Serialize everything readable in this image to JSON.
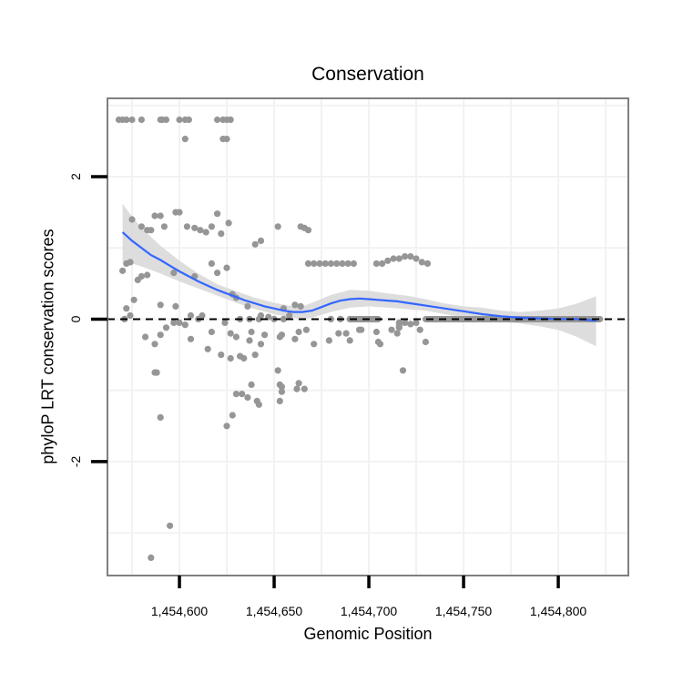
{
  "chart_data": {
    "type": "scatter",
    "title": "Conservation",
    "xlabel": "Genomic Position",
    "ylabel": "phyloP LRT conservation scores",
    "xlim": [
      1454562,
      1454837
    ],
    "ylim": [
      -3.6,
      3.1
    ],
    "x_ticks": [
      1454600,
      1454650,
      1454700,
      1454750,
      1454800
    ],
    "x_tick_labels": [
      "1,454,600",
      "1,454,650",
      "1,454,700",
      "1,454,750",
      "1,454,800"
    ],
    "y_ticks": [
      2,
      0,
      -2
    ],
    "y_tick_labels": [
      "2",
      "0",
      "-2"
    ],
    "reference_line": 0,
    "colors": {
      "points": "#969696",
      "smooth": "#3366ff",
      "band": "#d9d9d9",
      "grid": "#f2f2f2",
      "panel_border": "#7f7f7f"
    },
    "series": [
      {
        "name": "scores",
        "kind": "points",
        "x": [
          1454568,
          1454570,
          1454572,
          1454575,
          1454580,
          1454590,
          1454591,
          1454593,
          1454600,
          1454603,
          1454605,
          1454620,
          1454623,
          1454625,
          1454627,
          1454603,
          1454623,
          1454625,
          1454575,
          1454580,
          1454583,
          1454585,
          1454587,
          1454590,
          1454592,
          1454598,
          1454600,
          1454604,
          1454608,
          1454611,
          1454614,
          1454617,
          1454620,
          1454622,
          1454626,
          1454640,
          1454643,
          1454652,
          1454664,
          1454666,
          1454668,
          1454570,
          1454572,
          1454574,
          1454576,
          1454578,
          1454580,
          1454583,
          1454597,
          1454608,
          1454617,
          1454620,
          1454625,
          1454628,
          1454630,
          1454668,
          1454671,
          1454674,
          1454677,
          1454680,
          1454683,
          1454686,
          1454689,
          1454692,
          1454704,
          1454707,
          1454710,
          1454713,
          1454716,
          1454719,
          1454722,
          1454725,
          1454728,
          1454731,
          1454572,
          1454574,
          1454590,
          1454598,
          1454606,
          1454612,
          1454636,
          1454643,
          1454647,
          1454655,
          1454658,
          1454661,
          1454664,
          1454571,
          1454600,
          1454603,
          1454610,
          1454624,
          1454632,
          1454637,
          1454642,
          1454650,
          1454655,
          1454680,
          1454685,
          1454690,
          1454716,
          1454719,
          1454722,
          1454725,
          1454582,
          1454587,
          1454593,
          1454597,
          1454606,
          1454615,
          1454627,
          1454630,
          1454634,
          1454637,
          1454640,
          1454643,
          1454653,
          1454661,
          1454671,
          1454679,
          1454684,
          1454690,
          1454705,
          1454715,
          1454730,
          1454587,
          1454590,
          1454617,
          1454632,
          1454638,
          1454645,
          1454654,
          1454663,
          1454667,
          1454696,
          1454706,
          1454716,
          1454727,
          1454588,
          1454622,
          1454625,
          1454628,
          1454638,
          1454641,
          1454652,
          1454653,
          1454654,
          1454654,
          1454662,
          1454666,
          1454688,
          1454695,
          1454704,
          1454712,
          1454718,
          1454590,
          1454627,
          1454630,
          1454633,
          1454636,
          1454642,
          1454653,
          1454663,
          1454716,
          1454595,
          1454585
        ],
        "y": [
          2.8,
          2.8,
          2.8,
          2.8,
          2.8,
          2.8,
          2.8,
          2.8,
          2.8,
          2.8,
          2.8,
          2.8,
          2.8,
          2.8,
          2.8,
          2.53,
          2.53,
          2.53,
          1.4,
          1.3,
          1.25,
          1.25,
          1.45,
          1.45,
          1.3,
          1.5,
          1.5,
          1.3,
          1.28,
          1.25,
          1.22,
          1.3,
          1.48,
          1.2,
          1.35,
          1.05,
          1.1,
          1.3,
          1.3,
          1.28,
          1.25,
          0.68,
          0.78,
          0.8,
          0.27,
          0.55,
          0.6,
          0.62,
          0.65,
          0.6,
          0.78,
          0.65,
          0.72,
          0.35,
          0.3,
          0.78,
          0.78,
          0.78,
          0.78,
          0.78,
          0.78,
          0.78,
          0.78,
          0.78,
          0.78,
          0.78,
          0.82,
          0.85,
          0.85,
          0.88,
          0.88,
          0.85,
          0.8,
          0.78,
          0.15,
          0.05,
          0.2,
          0.18,
          0.05,
          0.05,
          0.18,
          0.05,
          0.03,
          0.15,
          0.05,
          0.2,
          0.18,
          0.0,
          -0.05,
          -0.08,
          0.0,
          -0.05,
          0.0,
          0.0,
          0.0,
          0.0,
          0.0,
          0.0,
          0.0,
          0.0,
          -0.05,
          -0.05,
          -0.07,
          -0.05,
          -0.25,
          -0.35,
          -0.12,
          -0.05,
          -0.28,
          -0.42,
          -0.2,
          -0.25,
          -0.55,
          -0.3,
          -0.5,
          -0.35,
          -0.25,
          -0.28,
          -0.35,
          -0.3,
          -0.2,
          -0.3,
          -0.32,
          -0.2,
          -0.32,
          -0.75,
          -0.22,
          -0.18,
          -0.52,
          -0.18,
          -0.22,
          -0.22,
          -0.18,
          -0.15,
          -0.15,
          -0.35,
          -0.12,
          -0.15,
          -0.75,
          -0.5,
          -1.5,
          -1.35,
          -0.92,
          -1.15,
          -0.72,
          -0.92,
          -1.02,
          -0.95,
          -0.98,
          -0.98,
          -0.2,
          -0.15,
          -0.18,
          -0.15,
          -0.72,
          -1.38,
          -0.55,
          -1.05,
          -1.05,
          -1.1,
          -1.2,
          -1.15,
          -0.9,
          -0.1,
          -2.9,
          -3.35
        ]
      },
      {
        "name": "segment_near_zero",
        "kind": "thick-segments",
        "segments": [
          [
            1454690,
            1454705,
            0.0
          ],
          [
            1454730,
            1454822,
            0.0
          ]
        ]
      },
      {
        "name": "loess smooth",
        "kind": "line",
        "x": [
          1454570,
          1454575,
          1454580,
          1454585,
          1454590,
          1454595,
          1454600,
          1454605,
          1454610,
          1454615,
          1454620,
          1454625,
          1454630,
          1454635,
          1454640,
          1454645,
          1454650,
          1454655,
          1454660,
          1454665,
          1454670,
          1454675,
          1454680,
          1454685,
          1454690,
          1454695,
          1454700,
          1454705,
          1454710,
          1454715,
          1454720,
          1454725,
          1454730,
          1454740,
          1454750,
          1454760,
          1454770,
          1454780,
          1454790,
          1454800,
          1454810,
          1454820
        ],
        "y": [
          1.22,
          1.1,
          1.0,
          0.9,
          0.83,
          0.75,
          0.67,
          0.6,
          0.53,
          0.47,
          0.41,
          0.36,
          0.31,
          0.26,
          0.22,
          0.18,
          0.15,
          0.12,
          0.1,
          0.1,
          0.12,
          0.17,
          0.22,
          0.26,
          0.28,
          0.29,
          0.28,
          0.27,
          0.26,
          0.25,
          0.23,
          0.21,
          0.19,
          0.15,
          0.11,
          0.07,
          0.04,
          0.02,
          0.01,
          0.0,
          0.0,
          -0.02
        ]
      },
      {
        "name": "confidence band",
        "kind": "band",
        "x": [
          1454570,
          1454575,
          1454580,
          1454590,
          1454600,
          1454610,
          1454620,
          1454630,
          1454640,
          1454650,
          1454660,
          1454665,
          1454670,
          1454680,
          1454690,
          1454700,
          1454710,
          1454720,
          1454730,
          1454740,
          1454750,
          1454760,
          1454770,
          1454780,
          1454790,
          1454800,
          1454810,
          1454820
        ],
        "ymin": [
          0.8,
          0.78,
          0.74,
          0.64,
          0.53,
          0.43,
          0.33,
          0.23,
          0.14,
          0.07,
          0.02,
          0.0,
          0.02,
          0.1,
          0.16,
          0.18,
          0.16,
          0.14,
          0.12,
          0.07,
          0.02,
          -0.02,
          -0.04,
          -0.06,
          -0.1,
          -0.15,
          -0.25,
          -0.38
        ],
        "ymax": [
          1.62,
          1.44,
          1.28,
          1.03,
          0.82,
          0.64,
          0.49,
          0.39,
          0.3,
          0.23,
          0.18,
          0.18,
          0.23,
          0.34,
          0.41,
          0.4,
          0.36,
          0.33,
          0.28,
          0.22,
          0.18,
          0.16,
          0.12,
          0.1,
          0.12,
          0.15,
          0.22,
          0.32
        ]
      }
    ]
  }
}
